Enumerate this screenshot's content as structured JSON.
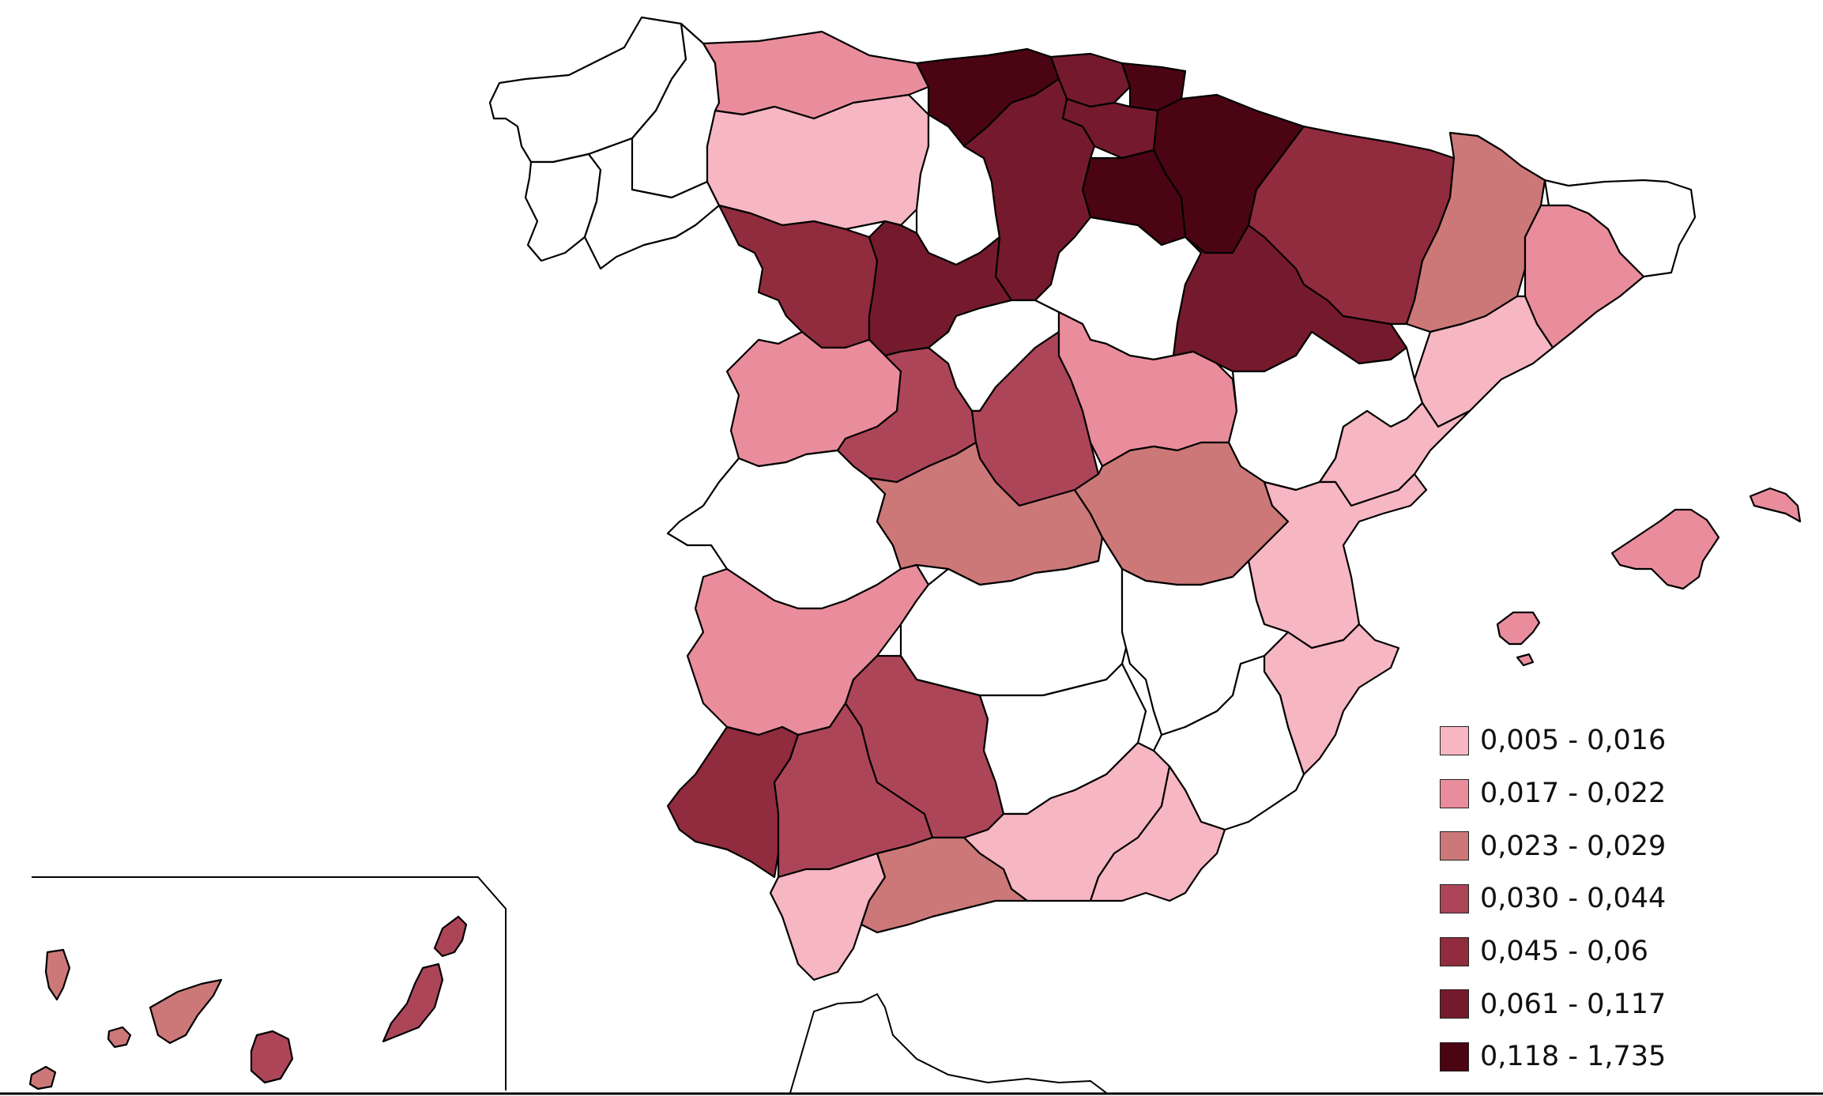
{
  "legend": {
    "classes": [
      {
        "label": "0,005 - 0,016",
        "color": "#f6b6c2"
      },
      {
        "label": "0,017 - 0,022",
        "color": "#e98d9c"
      },
      {
        "label": "0,023 - 0,029",
        "color": "#cc7878"
      },
      {
        "label": "0,030 - 0,044",
        "color": "#ad4559"
      },
      {
        "label": "0,045 - 0,06",
        "color": "#912b3e"
      },
      {
        "label": "0,061 - 0,117",
        "color": "#751a2c"
      },
      {
        "label": "0,118 - 1,735",
        "color": "#4a0412"
      }
    ],
    "no_data_color": "#ffffff"
  },
  "map": {
    "region": "Spain provinces",
    "regions": [
      {
        "name": "A Coruña",
        "class": -1
      },
      {
        "name": "Lugo",
        "class": -1
      },
      {
        "name": "Pontevedra",
        "class": -1
      },
      {
        "name": "Ourense",
        "class": -1
      },
      {
        "name": "Asturias",
        "class": 1
      },
      {
        "name": "León",
        "class": 0
      },
      {
        "name": "Palencia",
        "class": -1
      },
      {
        "name": "Cantabria",
        "class": 6
      },
      {
        "name": "Burgos",
        "class": 5
      },
      {
        "name": "Bizkaia",
        "class": 5
      },
      {
        "name": "Gipuzkoa",
        "class": 6
      },
      {
        "name": "Álava",
        "class": 5
      },
      {
        "name": "Navarra",
        "class": 6
      },
      {
        "name": "La Rioja",
        "class": 6
      },
      {
        "name": "Zamora",
        "class": 4
      },
      {
        "name": "Valladolid",
        "class": 5
      },
      {
        "name": "Soria",
        "class": -1
      },
      {
        "name": "Zaragoza",
        "class": 5
      },
      {
        "name": "Huesca",
        "class": 4
      },
      {
        "name": "Lleida",
        "class": 2
      },
      {
        "name": "Girona",
        "class": -1
      },
      {
        "name": "Barcelona",
        "class": 1
      },
      {
        "name": "Tarragona",
        "class": 0
      },
      {
        "name": "Salamanca",
        "class": 1
      },
      {
        "name": "Ávila",
        "class": 3
      },
      {
        "name": "Segovia",
        "class": -1
      },
      {
        "name": "Madrid",
        "class": 3
      },
      {
        "name": "Guadalajara",
        "class": 1
      },
      {
        "name": "Teruel",
        "class": -1
      },
      {
        "name": "Castellón",
        "class": 0
      },
      {
        "name": "Cáceres",
        "class": -1
      },
      {
        "name": "Toledo",
        "class": 2
      },
      {
        "name": "Cuenca",
        "class": 2
      },
      {
        "name": "Valencia",
        "class": 0
      },
      {
        "name": "Badajoz",
        "class": 1
      },
      {
        "name": "Ciudad Real",
        "class": -1
      },
      {
        "name": "Albacete",
        "class": -1
      },
      {
        "name": "Alicante",
        "class": 0
      },
      {
        "name": "Murcia",
        "class": -1
      },
      {
        "name": "Huelva",
        "class": 4
      },
      {
        "name": "Sevilla",
        "class": 3
      },
      {
        "name": "Córdoba",
        "class": 3
      },
      {
        "name": "Jaén",
        "class": -1
      },
      {
        "name": "Granada",
        "class": 0
      },
      {
        "name": "Almería",
        "class": 0
      },
      {
        "name": "Cádiz",
        "class": 0
      },
      {
        "name": "Málaga",
        "class": 2
      },
      {
        "name": "Mallorca",
        "class": 1
      },
      {
        "name": "Menorca",
        "class": 1
      },
      {
        "name": "Ibiza",
        "class": 1
      },
      {
        "name": "Formentera",
        "class": 1
      },
      {
        "name": "Lanzarote",
        "class": 3
      },
      {
        "name": "Fuerteventura",
        "class": 3
      },
      {
        "name": "Gran Canaria",
        "class": 3
      },
      {
        "name": "Tenerife",
        "class": 2
      },
      {
        "name": "La Palma",
        "class": 2
      },
      {
        "name": "La Gomera",
        "class": 2
      },
      {
        "name": "El Hierro",
        "class": 2
      }
    ]
  }
}
